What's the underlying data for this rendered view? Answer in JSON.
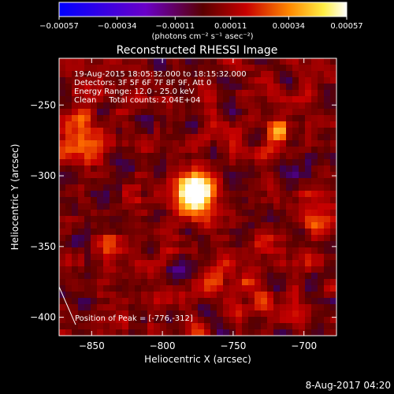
{
  "footer_timestamp": "8-Aug-2017 04:20",
  "colorbar": {
    "tick_labels": [
      "-0.00057",
      "-0.00034",
      "-0.00011",
      "0.00011",
      "0.00034",
      "0.00057"
    ],
    "units": "(photons cm⁻² s⁻¹ asec⁻²)",
    "range": [
      -0.00057,
      0.00057
    ]
  },
  "chart_data": {
    "type": "heatmap",
    "title": "Reconstructed RHESSI Image",
    "xlabel": "Heliocentric X (arcsec)",
    "ylabel": "Heliocentric Y (arcsec)",
    "xlim": [
      -873,
      -677
    ],
    "ylim": [
      -413,
      -217
    ],
    "x_ticks": [
      -850,
      -800,
      -750,
      -700
    ],
    "y_ticks": [
      -250,
      -300,
      -350,
      -400
    ],
    "x_tick_labels": [
      "−850",
      "−800",
      "−750",
      "−700"
    ],
    "y_tick_labels": [
      "−250",
      "−300",
      "−350",
      "−400"
    ],
    "annotations": [
      "19-Aug-2015 18:05:32.000 to 18:15:32.000",
      "Detectors: 3F 5F 6F 7F 8F 9F, Att 0",
      "Energy Range: 12.0 - 25.0 keV",
      "Clean     Total counts: 2.04E+04"
    ],
    "peak_label": "Position of Peak = [-776,-312]",
    "peak": [
      -776,
      -312
    ],
    "colormap": "red-temperature with blue-purple negatives",
    "value_range": [
      -0.00057,
      0.00057
    ]
  }
}
